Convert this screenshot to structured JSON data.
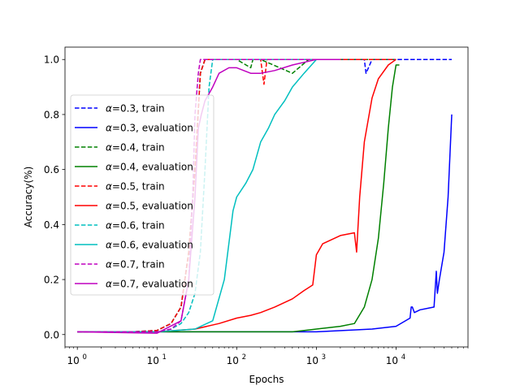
{
  "chart_data": {
    "type": "line",
    "title": "",
    "xlabel": "Epochs",
    "ylabel": "Accuracy(%)",
    "xscale": "log",
    "xlim": [
      0.7,
      80000
    ],
    "ylim": [
      -0.045,
      1.045
    ],
    "xticks": [
      1,
      10,
      100,
      1000,
      10000
    ],
    "xtick_labels": [
      {
        "base": "10",
        "exp": "0"
      },
      {
        "base": "10",
        "exp": "1"
      },
      {
        "base": "10",
        "exp": "2"
      },
      {
        "base": "10",
        "exp": "3"
      },
      {
        "base": "10",
        "exp": "4"
      }
    ],
    "yticks": [
      0.0,
      0.2,
      0.4,
      0.6,
      0.8,
      1.0
    ],
    "ytick_labels": [
      "0.0",
      "0.2",
      "0.4",
      "0.6",
      "0.8",
      "1.0"
    ],
    "legend": "center-left",
    "grid": false,
    "series": [
      {
        "name": "=0.3, train",
        "greek": "α",
        "color": "#0000ff",
        "dash": true,
        "x": [
          1,
          5,
          10,
          15,
          20,
          25,
          30,
          35,
          40,
          100,
          1000,
          3000,
          4000,
          4200,
          5000,
          10000,
          20000,
          50000
        ],
        "y": [
          0.01,
          0.01,
          0.015,
          0.04,
          0.1,
          0.3,
          0.6,
          0.95,
          1.0,
          1.0,
          1.0,
          1.0,
          1.0,
          0.95,
          1.0,
          1.0,
          1.0,
          1.0
        ]
      },
      {
        "name": "=0.3, evaluation",
        "greek": "α",
        "color": "#0000ff",
        "dash": false,
        "x": [
          1,
          10,
          100,
          1000,
          5000,
          10000,
          15000,
          15500,
          16000,
          17000,
          20000,
          30000,
          32000,
          33000,
          35000,
          40000,
          45000,
          50000
        ],
        "y": [
          0.01,
          0.01,
          0.01,
          0.01,
          0.02,
          0.03,
          0.06,
          0.1,
          0.1,
          0.08,
          0.09,
          0.1,
          0.23,
          0.15,
          0.2,
          0.3,
          0.5,
          0.8
        ]
      },
      {
        "name": "=0.4, train",
        "greek": "α",
        "color": "#008000",
        "dash": true,
        "x": [
          1,
          5,
          10,
          15,
          20,
          25,
          30,
          35,
          40,
          100,
          150,
          160,
          200,
          500,
          800,
          1000,
          5000,
          10000
        ],
        "y": [
          0.01,
          0.01,
          0.015,
          0.04,
          0.1,
          0.3,
          0.6,
          0.95,
          1.0,
          1.0,
          0.97,
          1.0,
          1.0,
          0.95,
          1.0,
          1.0,
          1.0,
          1.0
        ]
      },
      {
        "name": "=0.4, evaluation",
        "greek": "α",
        "color": "#008000",
        "dash": false,
        "x": [
          1,
          10,
          100,
          500,
          1000,
          2000,
          3000,
          4000,
          5000,
          6000,
          7000,
          8000,
          9000,
          10000,
          11000
        ],
        "y": [
          0.01,
          0.01,
          0.01,
          0.01,
          0.02,
          0.03,
          0.04,
          0.1,
          0.2,
          0.35,
          0.55,
          0.75,
          0.9,
          0.98,
          0.98
        ]
      },
      {
        "name": "=0.5, train",
        "greek": "α",
        "color": "#ff0000",
        "dash": true,
        "x": [
          1,
          5,
          10,
          15,
          20,
          25,
          30,
          35,
          40,
          100,
          200,
          220,
          240,
          1000,
          5000,
          10000
        ],
        "y": [
          0.01,
          0.01,
          0.015,
          0.04,
          0.1,
          0.3,
          0.6,
          0.95,
          1.0,
          1.0,
          1.0,
          0.91,
          1.0,
          1.0,
          1.0,
          1.0
        ]
      },
      {
        "name": "=0.5, evaluation",
        "greek": "α",
        "color": "#ff0000",
        "dash": false,
        "x": [
          1,
          10,
          30,
          60,
          100,
          150,
          200,
          300,
          500,
          700,
          900,
          1000,
          1200,
          2000,
          3000,
          3200,
          3500,
          4000,
          5000,
          6000,
          8000,
          10000
        ],
        "y": [
          0.01,
          0.01,
          0.02,
          0.04,
          0.06,
          0.07,
          0.08,
          0.1,
          0.13,
          0.16,
          0.18,
          0.29,
          0.33,
          0.36,
          0.37,
          0.3,
          0.5,
          0.7,
          0.86,
          0.93,
          0.98,
          1.0
        ]
      },
      {
        "name": "=0.6, train",
        "greek": "α",
        "color": "#00bfbf",
        "dash": true,
        "x": [
          1,
          5,
          10,
          15,
          20,
          25,
          30,
          35,
          40,
          45,
          50,
          100,
          1000
        ],
        "y": [
          0.01,
          0.01,
          0.01,
          0.02,
          0.04,
          0.08,
          0.15,
          0.3,
          0.6,
          0.9,
          1.0,
          1.0,
          1.0
        ]
      },
      {
        "name": "=0.6, evaluation",
        "greek": "α",
        "color": "#00bfbf",
        "dash": false,
        "x": [
          1,
          10,
          30,
          50,
          70,
          90,
          100,
          130,
          160,
          200,
          250,
          300,
          400,
          500,
          700,
          1000
        ],
        "y": [
          0.01,
          0.01,
          0.02,
          0.05,
          0.2,
          0.45,
          0.5,
          0.55,
          0.6,
          0.7,
          0.75,
          0.8,
          0.85,
          0.9,
          0.95,
          1.0
        ]
      },
      {
        "name": "=0.7, train",
        "greek": "α",
        "color": "#bf00bf",
        "dash": true,
        "x": [
          1,
          5,
          10,
          15,
          20,
          25,
          28,
          30,
          33,
          35,
          40,
          1000
        ],
        "y": [
          0.01,
          0.01,
          0.01,
          0.02,
          0.05,
          0.2,
          0.5,
          0.8,
          0.95,
          1.0,
          1.0,
          1.0
        ]
      },
      {
        "name": "=0.7, evaluation",
        "greek": "α",
        "color": "#bf00bf",
        "dash": false,
        "x": [
          1,
          10,
          20,
          25,
          30,
          33,
          36,
          40,
          50,
          60,
          80,
          100,
          150,
          200,
          300,
          500,
          1000,
          2000
        ],
        "y": [
          0.01,
          0.005,
          0.05,
          0.2,
          0.5,
          0.75,
          0.8,
          0.85,
          0.9,
          0.95,
          0.97,
          0.97,
          0.95,
          0.95,
          0.96,
          0.98,
          1.0,
          1.0
        ]
      }
    ]
  }
}
